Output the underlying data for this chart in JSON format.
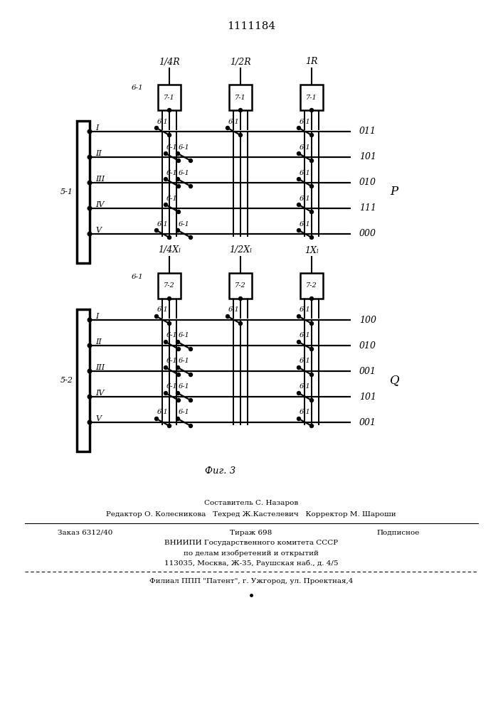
{
  "title": "1111184",
  "fig_label": "Фиг. 3",
  "top_labels": [
    "1/4R",
    "1/2R",
    "1R"
  ],
  "bottom_labels": [
    "1/4Xₗ",
    "1/2Xₗ",
    "1Xₗ"
  ],
  "top_right_labels": [
    "011",
    "101",
    "010",
    "111",
    "000"
  ],
  "bottom_right_labels": [
    "100",
    "010",
    "001",
    "101",
    "001"
  ],
  "top_P_label": "P",
  "bottom_Q_label": "Q",
  "row_names": [
    "I",
    "II",
    "III",
    "IV",
    "V"
  ],
  "top_block_left": "5-1",
  "bottom_block_left": "5-2",
  "element_61": "6-1",
  "element_71": "7-1",
  "element_72": "7-2",
  "footer_composer": "Составитель С. Назаров",
  "footer_editor": "Редактор О. Колесникова",
  "footer_techred": "Техред Ж.Кастелевич",
  "footer_corrector": "Корректор М. Шароши",
  "footer_order": "Заказ 6312/40",
  "footer_tirazh": "Тираж 698",
  "footer_podpisnoe": "Подписное",
  "footer_vniip": "ВНИИПИ Государственного комитета СССР",
  "footer_dela": "по делам изобретений и открытий",
  "footer_addr": "113035, Москва, Ж-35, Раушская наб., д. 4/5",
  "footer_filial": "Филиал ППП \"Патент\", г. Ужгород, ул. Проектная,4",
  "bg_color": "#ffffff",
  "line_color": "#000000",
  "text_color": "#000000"
}
